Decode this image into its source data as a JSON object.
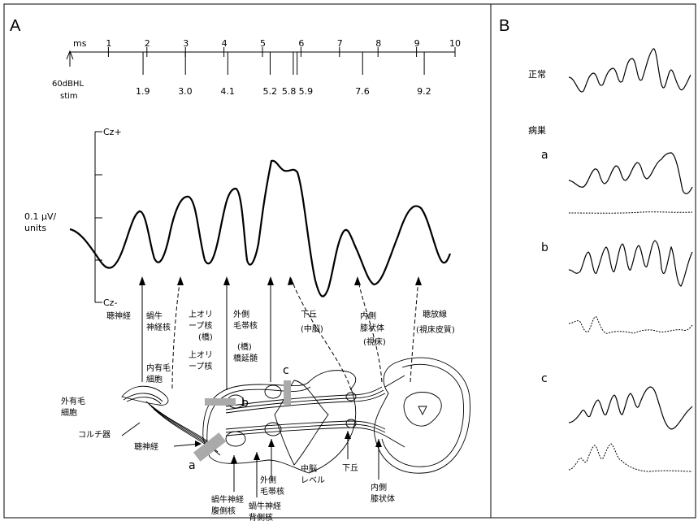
{
  "panel_a": {
    "letter": "A",
    "timescale": {
      "unit": "ms",
      "ticks": [
        "1",
        "2",
        "3",
        "4",
        "5",
        "6",
        "7",
        "8",
        "9",
        "10"
      ],
      "stim_label_1": "60dBHL",
      "stim_label_2": "stim",
      "peak_latencies": [
        "1.9",
        "3.0",
        "4.1",
        "5.2",
        "5.8",
        "5.9",
        "7.6",
        "9.2"
      ]
    },
    "waveform": {
      "top_label": "Cz+",
      "bottom_label": "Cz-",
      "scale_label_1": "0.1 µV/",
      "scale_label_2": "units"
    },
    "generators": [
      {
        "l1": "聴神経"
      },
      {
        "l1": "蝸牛",
        "l2": "神経核",
        "l3": "内有毛",
        "l4": "細胞"
      },
      {
        "l1": "上オリ",
        "l2": "ープ核",
        "l3": "(橋)",
        "l4": "上オリ",
        "l5": "ープ核"
      },
      {
        "l1": "外側",
        "l2": "毛帯核",
        "l3": "(橋)",
        "l4": "橋延髄"
      },
      {
        "l1": "下丘",
        "l2": "(中脳)"
      },
      {
        "l1": "内側",
        "l2": "膝状体",
        "l3": "(視床)"
      },
      {
        "l1": "聴放線",
        "l2": "(視床皮質)"
      }
    ],
    "anatomy": {
      "outer_hair_cell_1": "外有毛",
      "outer_hair_cell_2": "細胞",
      "organ_of_corti": "コルチ器",
      "auditory_nerve": "聴神経",
      "vcn_1": "蝸牛神経",
      "vcn_2": "腹側核",
      "dcn_1": "蝸牛神経",
      "dcn_2": "背側核",
      "ll_1": "外側",
      "ll_2": "毛帯核",
      "midbrain_1": "中脳",
      "midbrain_2": "レベル",
      "ic": "下丘",
      "mgb_1": "内側",
      "mgb_2": "膝状体",
      "lesion_a": "a",
      "lesion_b": "b",
      "lesion_c": "c"
    }
  },
  "panel_b": {
    "letter": "B",
    "normal": "正常",
    "lesion": "病巣",
    "cases": [
      "a",
      "b",
      "c"
    ]
  }
}
